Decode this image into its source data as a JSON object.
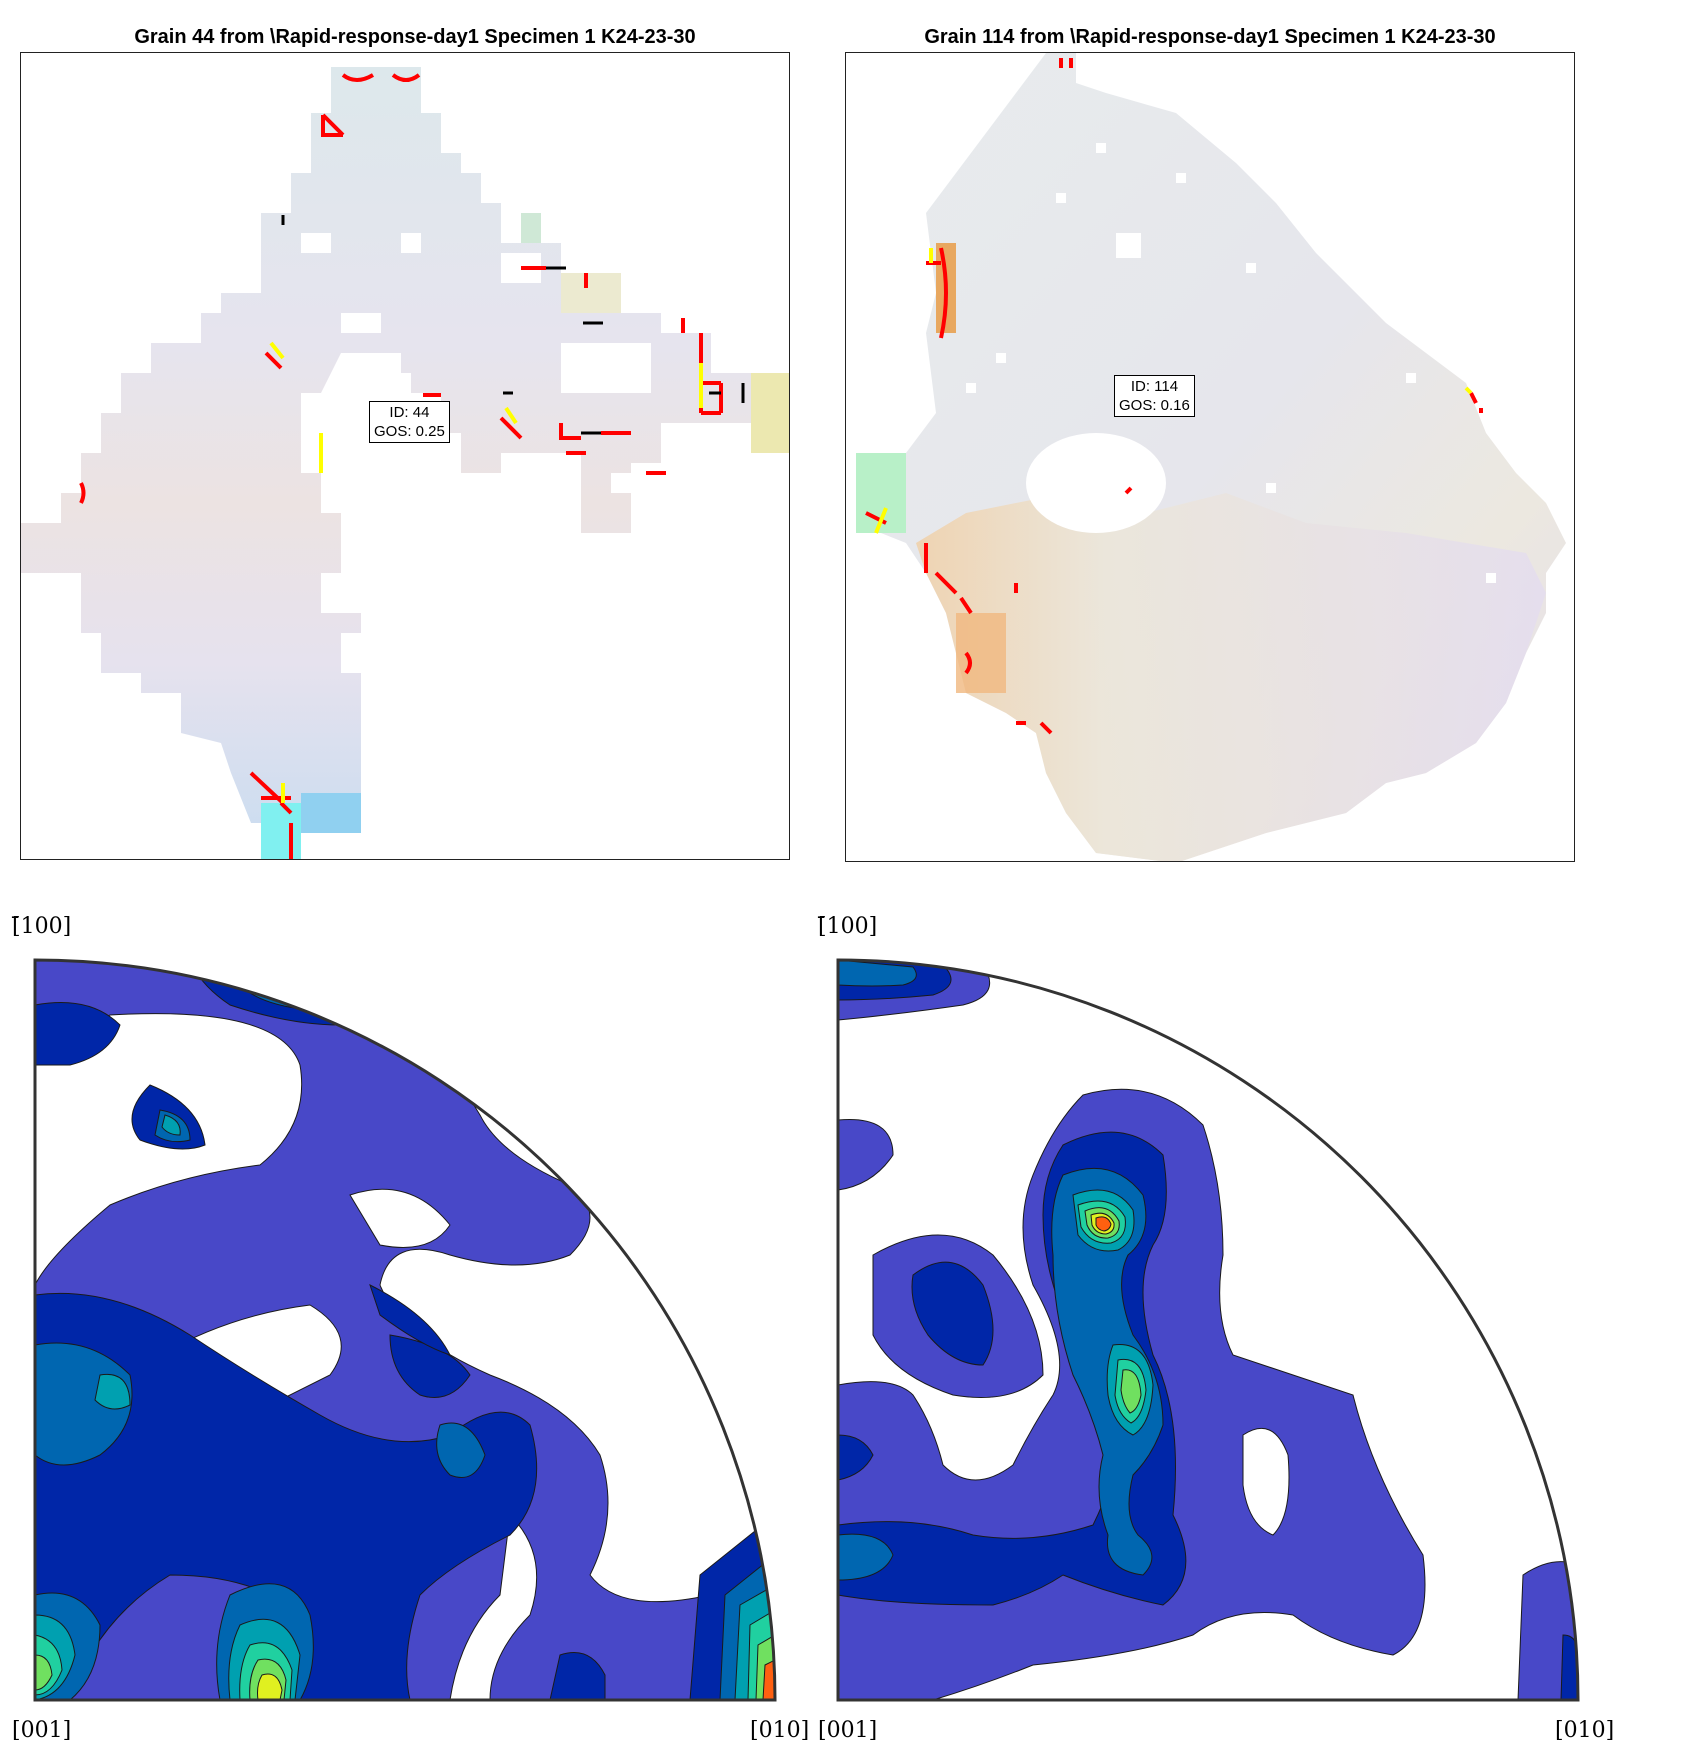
{
  "panels": [
    {
      "title": "Grain 44 from \\Rapid-response-day1 Specimen 1 K24-23-30",
      "info": {
        "id_text": "ID: 44",
        "gos_text": "GOS: 0.25"
      },
      "pole_figure": {
        "top_label": "[̄100]",
        "left_label": "[001]",
        "right_label": "[010]"
      }
    },
    {
      "title": "Grain 114 from \\Rapid-response-day1 Specimen 1 K24-23-30",
      "info": {
        "id_text": "ID: 114",
        "gos_text": "GOS: 0.16"
      },
      "pole_figure": {
        "top_label": "[̄100]",
        "left_label": "[001]",
        "right_label": "[010]"
      }
    }
  ],
  "colors": {
    "boundary_high": "#ff0000",
    "boundary_mid": "#ffff00",
    "boundary_low": "#000000",
    "contour_levels": [
      "#4848c8",
      "#0026a8",
      "#0066b0",
      "#00a0b0",
      "#20d0a0",
      "#70e060",
      "#e0f020",
      "#ff6010"
    ]
  }
}
